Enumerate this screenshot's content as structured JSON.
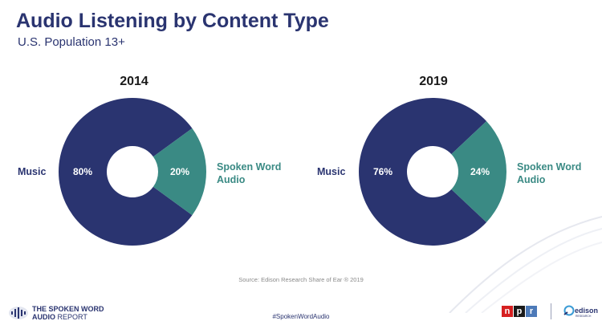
{
  "header": {
    "title": "Audio Listening by Content Type",
    "subtitle": "U.S. Population 13+"
  },
  "chart_data": [
    {
      "type": "pie",
      "title": "2014",
      "categories": [
        "Music",
        "Spoken Word Audio"
      ],
      "values": [
        80,
        20
      ],
      "value_labels": [
        "80%",
        "20%"
      ],
      "colors": [
        "#2a3470",
        "#3a8a84"
      ]
    },
    {
      "type": "pie",
      "title": "2019",
      "categories": [
        "Music",
        "Spoken Word Audio"
      ],
      "values": [
        76,
        24
      ],
      "value_labels": [
        "76%",
        "24%"
      ],
      "colors": [
        "#2a3470",
        "#3a8a84"
      ]
    }
  ],
  "labels": {
    "music": "Music",
    "spoken_line1": "Spoken Word",
    "spoken_line2": "Audio"
  },
  "footer": {
    "source": "Source: Edison Research Share of Ear ® 2019",
    "hashtag": "#SpokenWordAudio",
    "report_line1": "THE SPOKEN WORD",
    "report_line2a": "AUDIO ",
    "report_line2b": "REPORT",
    "npr_letters": [
      "n",
      "p",
      "r"
    ],
    "edison": "edison",
    "edison_sub": "RESEARCH"
  }
}
